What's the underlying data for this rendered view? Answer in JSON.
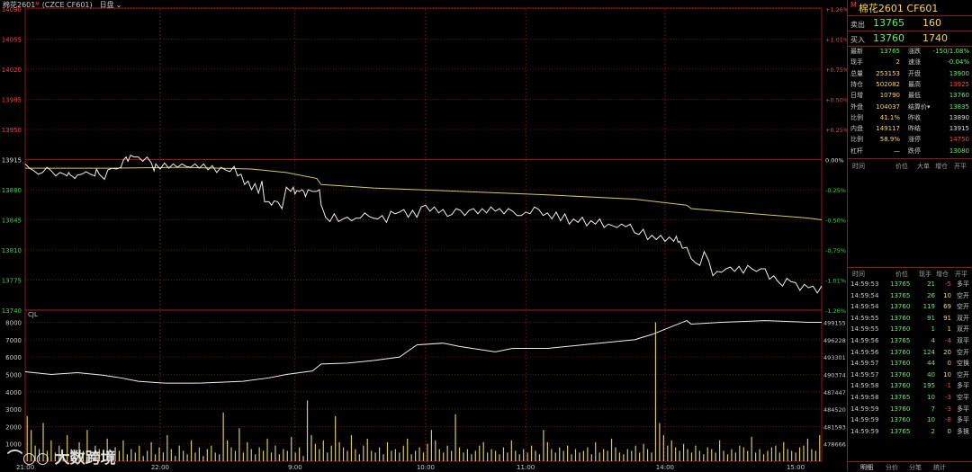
{
  "header": {
    "title": "棉花2601",
    "code": "(CZCE CF601)",
    "period": "日盘"
  },
  "chart_data": {
    "type": "line",
    "price_axis": [
      14090,
      14055,
      14020,
      13985,
      13950,
      13915,
      13880,
      13845,
      13810,
      13775,
      13740
    ],
    "pct_axis": [
      "+1.26%",
      "+1.01%",
      "+0.75%",
      "+0.50%",
      "+0.25%",
      "0.00%",
      "-0.25%",
      "-0.50%",
      "-0.75%",
      "-1.01%",
      "-1.26%"
    ],
    "ylim": [
      13740,
      14090
    ],
    "prev_settle": 13915,
    "time_labels": [
      "21:00",
      "22:00",
      "9:00",
      "10:00",
      "11:00",
      "14:00",
      "15:00"
    ],
    "price_x": [
      0,
      5,
      10,
      15,
      20,
      25,
      30,
      35,
      40,
      45,
      48,
      50,
      52,
      55,
      57,
      60,
      65,
      70,
      75,
      80,
      82,
      85,
      88,
      91,
      95,
      100,
      105,
      110,
      113,
      116,
      118,
      121,
      125,
      130,
      135,
      140,
      145,
      148,
      150,
      155,
      160,
      165,
      170,
      175,
      180,
      185,
      190,
      195,
      200,
      205,
      210,
      215,
      220,
      225,
      230,
      235,
      240,
      244,
      248,
      252,
      256,
      260,
      264,
      268,
      270,
      272,
      275,
      280,
      283,
      286,
      290,
      295,
      300,
      305,
      308,
      310,
      312,
      315,
      318,
      320,
      322,
      325,
      330,
      335,
      338,
      340,
      342,
      345,
      350,
      355,
      360,
      365,
      370,
      375,
      380,
      385,
      390,
      395,
      400,
      405,
      410,
      415,
      420,
      425,
      430,
      435,
      440,
      445,
      450,
      455,
      460,
      465,
      470,
      475,
      480,
      485,
      490,
      495,
      500,
      505,
      510,
      515,
      520,
      525,
      530,
      535,
      540,
      545,
      550,
      555,
      560,
      565,
      570,
      575,
      580,
      585,
      590,
      595,
      600,
      605,
      610,
      615,
      620,
      625,
      630,
      635,
      640,
      645,
      650,
      655,
      660,
      665,
      670,
      675,
      680,
      685,
      690,
      695,
      700,
      705,
      710,
      715,
      720,
      725,
      730,
      735,
      740,
      745,
      748,
      750,
      752,
      755,
      760,
      765,
      770,
      775,
      780,
      785,
      790,
      795,
      800,
      805,
      810,
      815,
      820,
      825,
      830,
      835,
      840,
      845,
      850,
      855,
      860,
      865,
      870,
      875,
      880,
      885,
      890,
      895,
      900,
      905,
      910,
      915
    ],
    "price_y": [
      13910,
      13905,
      13902,
      13898,
      13900,
      13906,
      13902,
      13896,
      13900,
      13898,
      13896,
      13900,
      13897,
      13895,
      13893,
      13897,
      13898,
      13901,
      13898,
      13896,
      13904,
      13898,
      13895,
      13892,
      13903,
      13905,
      13904,
      13906,
      13915,
      13918,
      13913,
      13920,
      13918,
      13918,
      13913,
      13918,
      13911,
      13902,
      13910,
      13904,
      13911,
      13905,
      13910,
      13906,
      13910,
      13907,
      13906,
      13910,
      13905,
      13910,
      13903,
      13908,
      13900,
      13906,
      13903,
      13901,
      13907,
      13896,
      13898,
      13886,
      13890,
      13880,
      13887,
      13876,
      13883,
      13890,
      13866,
      13866,
      13862,
      13867,
      13866,
      13858,
      13883,
      13878,
      13883,
      13875,
      13879,
      13878,
      13880,
      13878,
      13872,
      13880,
      13878,
      13878,
      13880,
      13862,
      13857,
      13848,
      13843,
      13852,
      13843,
      13846,
      13848,
      13844,
      13847,
      13847,
      13853,
      13849,
      13847,
      13846,
      13850,
      13842,
      13855,
      13852,
      13854,
      13857,
      13848,
      13856,
      13848,
      13860,
      13862,
      13855,
      13860,
      13853,
      13857,
      13849,
      13851,
      13858,
      13856,
      13850,
      13856,
      13858,
      13852,
      13858,
      13853,
      13860,
      13855,
      13858,
      13852,
      13858,
      13855,
      13850,
      13850,
      13854,
      13852,
      13860,
      13857,
      13850,
      13853,
      13846,
      13854,
      13844,
      13852,
      13840,
      13846,
      13842,
      13848,
      13838,
      13844,
      13840,
      13846,
      13836,
      13840,
      13838,
      13836,
      13840,
      13837,
      13840,
      13830,
      13828,
      13834,
      13822,
      13827,
      13822,
      13827,
      13820,
      13825,
      13820,
      13826,
      13819,
      13820,
      13812,
      13813,
      13800,
      13795,
      13792,
      13808,
      13798,
      13780,
      13785,
      13784,
      13788,
      13790,
      13785,
      13791,
      13783,
      13792,
      13788,
      13785,
      13788,
      13788,
      13776,
      13780,
      13773,
      13768,
      13777,
      13773,
      13772,
      13763,
      13770,
      13766,
      13768,
      13760,
      13768,
      13765,
      13770,
      13758,
      13773,
      13766,
      13772,
      13764
    ],
    "avg_x": [
      0,
      100,
      180,
      260,
      300,
      335,
      340,
      400,
      500,
      600,
      700,
      760,
      765,
      800,
      850,
      900,
      915
    ],
    "avg_y": [
      13905,
      13905,
      13906,
      13904,
      13900,
      13893,
      13886,
      13882,
      13878,
      13874,
      13869,
      13862,
      13858,
      13855,
      13851,
      13847,
      13845
    ],
    "vol_axis": [
      8000,
      7000,
      6000,
      5000,
      4000,
      3000,
      2000,
      1000
    ],
    "oi_axis": [
      499155,
      496228,
      493301,
      490374,
      487447,
      484520,
      481593,
      478666
    ],
    "oi_label": "CJL",
    "oi_x": [
      0,
      30,
      60,
      90,
      110,
      130,
      160,
      200,
      250,
      280,
      300,
      330,
      335,
      340,
      370,
      400,
      430,
      450,
      480,
      500,
      540,
      560,
      600,
      640,
      680,
      700,
      720,
      740,
      760,
      765,
      800,
      850,
      900,
      915
    ],
    "oi_y": [
      5150,
      5000,
      5100,
      4950,
      4800,
      4600,
      4500,
      4500,
      4600,
      4800,
      5000,
      5200,
      5400,
      5600,
      5650,
      5800,
      6000,
      6700,
      6800,
      6600,
      6300,
      6500,
      6500,
      6700,
      6900,
      7000,
      7300,
      7700,
      8100,
      7900,
      8000,
      8100,
      8000,
      8000
    ],
    "vol_bars": [
      2600,
      1800,
      900,
      700,
      2200,
      600,
      1200,
      500,
      900,
      400,
      1500,
      700,
      300,
      1100,
      600,
      1800,
      400,
      900,
      700,
      500,
      1300,
      300,
      800,
      600,
      1200,
      400,
      700,
      500,
      900,
      300,
      600,
      1100,
      400,
      800,
      500,
      1500,
      700,
      300,
      900,
      600,
      400,
      1200,
      500,
      800,
      300,
      700,
      900,
      500,
      400,
      2800,
      1200,
      800,
      600,
      1900,
      500,
      1100,
      700,
      400,
      800,
      600,
      1300,
      500,
      900,
      400,
      700,
      600,
      1400,
      500,
      800,
      300,
      3500,
      1500,
      1000,
      700,
      1200,
      500,
      900,
      2600,
      1100,
      800,
      600,
      1500,
      700,
      400,
      900,
      1300,
      600,
      500,
      800,
      400,
      1100,
      600,
      700,
      500,
      900,
      1300,
      400,
      600,
      800,
      500,
      1000,
      1800,
      1200,
      700,
      500,
      900,
      600,
      2700,
      800,
      500,
      700,
      400,
      600,
      900,
      1100,
      500,
      700,
      600,
      400,
      800,
      500,
      1200,
      600,
      400,
      700,
      500,
      900,
      600,
      400,
      1800,
      1100,
      700,
      500,
      800,
      600,
      900,
      400,
      700,
      500,
      600,
      800,
      400,
      1100,
      500,
      700,
      600,
      1300,
      800,
      500,
      400,
      700,
      600,
      900,
      500,
      1000,
      700,
      500,
      8000,
      2200,
      1500,
      900,
      1200,
      800,
      600,
      1000,
      700,
      500,
      900,
      600,
      400,
      800,
      700,
      500,
      1200,
      600,
      400,
      700,
      500,
      900,
      800,
      600,
      1400,
      500,
      700,
      400,
      600,
      800,
      900,
      500,
      1100,
      700,
      600,
      500,
      800,
      900,
      1300,
      700,
      600,
      1500
    ]
  },
  "panel": {
    "title": "棉花2601",
    "code": "CF601",
    "marker": "M",
    "ask_label": "卖出",
    "ask_price": "13765",
    "ask_vol": "160",
    "bid_label": "买入",
    "bid_price": "13760",
    "bid_vol": "1740",
    "stats": [
      {
        "l1": "最新",
        "v1": "13765",
        "c1": "g",
        "l2": "涨跌",
        "v2": "-150/1.08%",
        "c2": "g"
      },
      {
        "l1": "现手",
        "v1": "2",
        "c1": "y",
        "l2": "速涨",
        "v2": "-0.04%",
        "c2": "g"
      },
      {
        "l1": "总量",
        "v1": "253153",
        "c1": "y",
        "l2": "开盘",
        "v2": "13900",
        "c2": "g"
      },
      {
        "l1": "持仓",
        "v1": "502082",
        "c1": "y",
        "l2": "最高",
        "v2": "13925",
        "c2": "r"
      },
      {
        "l1": "日增",
        "v1": "10790",
        "c1": "y",
        "l2": "最低",
        "v2": "13760",
        "c2": "g"
      },
      {
        "l1": "外盘",
        "v1": "104037",
        "c1": "y",
        "l2": "结算价▾",
        "v2": "13835",
        "c2": "g"
      },
      {
        "l1": "比例",
        "v1": "41.1%",
        "c1": "y",
        "l2": "昨收",
        "v2": "13890",
        "c2": "w"
      },
      {
        "l1": "内盘",
        "v1": "149117",
        "c1": "y",
        "l2": "昨结",
        "v2": "13915",
        "c2": "w"
      },
      {
        "l1": "比例",
        "v1": "58.9%",
        "c1": "y",
        "l2": "涨停",
        "v2": "14750",
        "c2": "r"
      },
      {
        "l1": "杠杆",
        "v1": "—",
        "c1": "w",
        "l2": "跌停",
        "v2": "13080",
        "c2": "g"
      }
    ],
    "bigorder_header": {
      "time": "时间",
      "price": "价位",
      "big": "大单",
      "chg": "增仓",
      "oc": "开平"
    },
    "ticks_header": {
      "time": "时间",
      "price": "价位",
      "vol": "现手",
      "chg": "增仓",
      "oc": "开平"
    },
    "ticks": [
      {
        "t": "14:59:53",
        "p": "13765",
        "v": "21",
        "c": "-5",
        "o": "多平"
      },
      {
        "t": "14:59:54",
        "p": "13765",
        "v": "26",
        "c": "10",
        "o": "空开"
      },
      {
        "t": "14:59:54",
        "p": "13760",
        "v": "119",
        "c": "69",
        "o": "空开"
      },
      {
        "t": "14:59:55",
        "p": "13760",
        "v": "91",
        "c": "91",
        "o": "双开"
      },
      {
        "t": "14:59:55",
        "p": "13760",
        "v": "1",
        "c": "1",
        "o": "双开"
      },
      {
        "t": "14:59:56",
        "p": "13765",
        "v": "4",
        "c": "-4",
        "o": "双平"
      },
      {
        "t": "14:59:56",
        "p": "13760",
        "v": "124",
        "c": "20",
        "o": "空开"
      },
      {
        "t": "14:59:57",
        "p": "13760",
        "v": "44",
        "c": "0",
        "o": "空换"
      },
      {
        "t": "14:59:57",
        "p": "13760",
        "v": "40",
        "c": "10",
        "o": "空开"
      },
      {
        "t": "14:59:58",
        "p": "13760",
        "v": "195",
        "c": "-1",
        "o": "多平"
      },
      {
        "t": "14:59:58",
        "p": "13765",
        "v": "10",
        "c": "-3",
        "o": "空平"
      },
      {
        "t": "14:59:59",
        "p": "13760",
        "v": "7",
        "c": "-3",
        "o": "多平"
      },
      {
        "t": "14:59:59",
        "p": "13760",
        "v": "10",
        "c": "-8",
        "o": "多平"
      },
      {
        "t": "14:59:59",
        "p": "13765",
        "v": "2",
        "c": "0",
        "o": "多换"
      }
    ],
    "tabs": [
      "明细",
      "分价",
      "分笔",
      "统计"
    ]
  },
  "watermark": "大数跨境",
  "colors": {
    "grid": "#8b1a1a",
    "price_line": "#f0f0f0",
    "avg_line": "#d8c860",
    "vol_bar": "#d8c860",
    "axis_red": "#ff4040",
    "axis_green": "#40d040"
  }
}
